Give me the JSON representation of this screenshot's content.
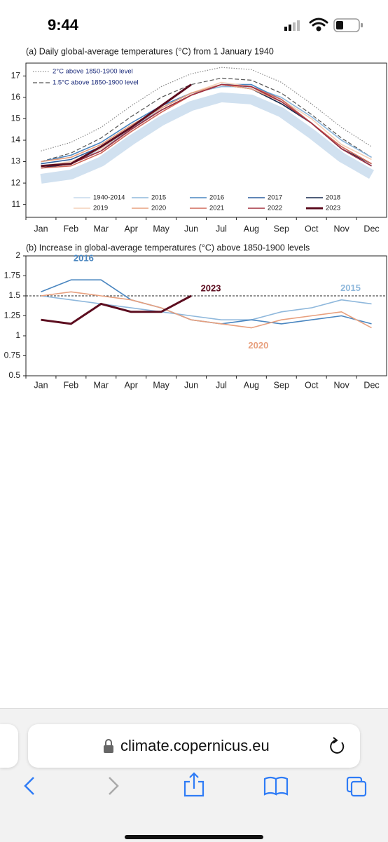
{
  "status_bar": {
    "time": "9:44"
  },
  "browser": {
    "url": "climate.copernicus.eu"
  },
  "chart_data": [
    {
      "type": "line",
      "title": "(a) Daily global-average temperatures (°C) from 1 January 1940",
      "categories": [
        "Jan",
        "Feb",
        "Mar",
        "Apr",
        "May",
        "Jun",
        "Jul",
        "Aug",
        "Sep",
        "Oct",
        "Nov",
        "Dec"
      ],
      "ylim": [
        10.4,
        17.6
      ],
      "yticks": [
        11,
        12,
        13,
        14,
        15,
        16,
        17
      ],
      "legend": "bottom",
      "series": [
        {
          "name": "2°C above 1850-1900 level",
          "color": "#8a8a8a",
          "dash": "dotted",
          "values": [
            13.5,
            13.9,
            14.6,
            15.6,
            16.5,
            17.1,
            17.4,
            17.3,
            16.7,
            15.7,
            14.6,
            13.7
          ]
        },
        {
          "name": "1.5°C above 1850-1900 level",
          "color": "#555555",
          "dash": "dashed",
          "values": [
            13.0,
            13.4,
            14.1,
            15.1,
            16.0,
            16.6,
            16.9,
            16.8,
            16.2,
            15.2,
            14.1,
            13.2
          ]
        },
        {
          "name": "1940-2014",
          "color": "#c6d9ec",
          "values": [
            12.2,
            12.4,
            13.0,
            14.0,
            14.9,
            15.6,
            16.0,
            15.9,
            15.3,
            14.3,
            13.2,
            12.4
          ]
        },
        {
          "name": "2015",
          "color": "#8fb8dc",
          "values": [
            12.8,
            12.9,
            13.6,
            14.5,
            15.5,
            16.2,
            16.5,
            16.5,
            16.0,
            15.1,
            14.0,
            13.2
          ]
        },
        {
          "name": "2016",
          "color": "#4a86c0",
          "values": [
            13.0,
            13.3,
            13.9,
            14.8,
            15.6,
            16.2,
            16.6,
            16.6,
            15.9,
            14.8,
            13.6,
            12.8
          ]
        },
        {
          "name": "2017",
          "color": "#2b5f9e",
          "values": [
            12.9,
            13.1,
            13.7,
            14.6,
            15.5,
            16.2,
            16.6,
            16.5,
            15.8,
            14.8,
            13.6,
            12.8
          ]
        },
        {
          "name": "2018",
          "color": "#15294f",
          "values": [
            12.7,
            12.9,
            13.5,
            14.5,
            15.4,
            16.1,
            16.6,
            16.4,
            15.7,
            14.8,
            13.6,
            12.9
          ]
        },
        {
          "name": "2019",
          "color": "#f3d1b8",
          "values": [
            12.8,
            13.0,
            13.6,
            14.6,
            15.5,
            16.2,
            16.7,
            16.5,
            15.9,
            15.0,
            13.8,
            13.1
          ]
        },
        {
          "name": "2020",
          "color": "#e8a07e",
          "values": [
            13.0,
            13.2,
            13.8,
            14.7,
            15.5,
            16.2,
            16.6,
            16.4,
            15.8,
            14.8,
            13.7,
            12.9
          ]
        },
        {
          "name": "2021",
          "color": "#d0685a",
          "values": [
            12.7,
            12.8,
            13.4,
            14.4,
            15.3,
            16.1,
            16.6,
            16.5,
            15.9,
            14.8,
            13.7,
            12.9
          ]
        },
        {
          "name": "2022",
          "color": "#a3303f",
          "values": [
            12.8,
            12.9,
            13.5,
            14.5,
            15.4,
            16.1,
            16.6,
            16.5,
            15.8,
            14.8,
            13.6,
            12.8
          ]
        },
        {
          "name": "2023",
          "color": "#5c0d1f",
          "width": 3,
          "values": [
            12.8,
            12.9,
            13.7,
            14.6,
            15.6,
            16.6,
            null,
            null,
            null,
            null,
            null,
            null
          ]
        }
      ]
    },
    {
      "type": "line",
      "title": "(b) Increase in global-average temperatures (°C) above 1850-1900 levels",
      "categories": [
        "Jan",
        "Feb",
        "Mar",
        "Apr",
        "May",
        "Jun",
        "Jul",
        "Aug",
        "Sep",
        "Oct",
        "Nov",
        "Dec"
      ],
      "ylim": [
        0.5,
        2
      ],
      "yticks": [
        0.5,
        0.75,
        1,
        1.25,
        1.5,
        1.75,
        2
      ],
      "hline": 1.5,
      "series": [
        {
          "name": "2015",
          "color": "#8fb8dc",
          "values": [
            1.5,
            1.45,
            1.4,
            1.35,
            1.3,
            1.25,
            1.2,
            1.2,
            1.3,
            1.35,
            1.45,
            1.4
          ]
        },
        {
          "name": "2016",
          "color": "#4a86c0",
          "values": [
            1.55,
            1.7,
            1.7,
            1.45,
            1.35,
            1.2,
            1.15,
            1.2,
            1.15,
            1.2,
            1.25,
            1.15
          ]
        },
        {
          "name": "2020",
          "color": "#e8a07e",
          "values": [
            1.5,
            1.55,
            1.5,
            1.45,
            1.35,
            1.2,
            1.15,
            1.1,
            1.2,
            1.25,
            1.3,
            1.1
          ]
        },
        {
          "name": "2023",
          "color": "#5c0d1f",
          "width": 3,
          "values": [
            1.2,
            1.15,
            1.4,
            1.3,
            1.3,
            1.5,
            null,
            null,
            null,
            null,
            null,
            null
          ]
        }
      ]
    }
  ]
}
